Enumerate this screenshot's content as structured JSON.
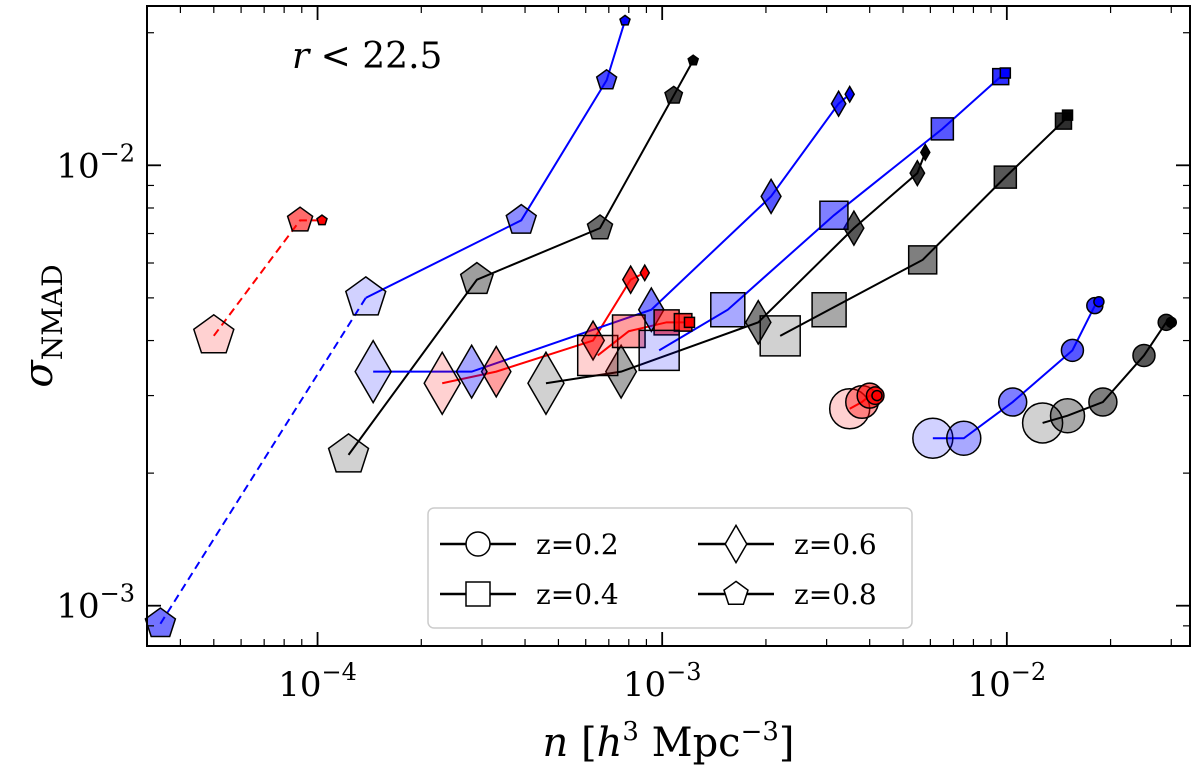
{
  "chart_data": {
    "type": "scatter",
    "title": "",
    "annotation": {
      "text_var": "r",
      "text_rest": " < 22.5",
      "position": "top-left"
    },
    "xlabel": {
      "var": "n",
      "unit_open": " [",
      "h": "h",
      "h_exp": "3",
      "mpc": " Mpc",
      "mpc_exp": "−3",
      "unit_close": "]"
    },
    "ylabel": {
      "base": "σ",
      "sub": "NMAD"
    },
    "xscale": "log",
    "yscale": "log",
    "xlim": [
      3.2e-05,
      0.034
    ],
    "ylim": [
      0.00081,
      0.023
    ],
    "xticks": [
      {
        "value": 0.0001,
        "base": "10",
        "exp": "−4"
      },
      {
        "value": 0.001,
        "base": "10",
        "exp": "−3"
      },
      {
        "value": 0.01,
        "base": "10",
        "exp": "−2"
      }
    ],
    "yticks": [
      {
        "value": 0.001,
        "base": "10",
        "exp": "−3"
      },
      {
        "value": 0.01,
        "base": "10",
        "exp": "−2"
      }
    ],
    "legend": {
      "placement": "bottom-center",
      "entries": [
        {
          "label": "z=0.2",
          "marker": "circle"
        },
        {
          "label": "z=0.4",
          "marker": "square"
        },
        {
          "label": "z=0.6",
          "marker": "diamond"
        },
        {
          "label": "z=0.8",
          "marker": "pentagon"
        }
      ]
    },
    "colors": {
      "red": "#ff0000",
      "blue": "#0000ff",
      "black": "#000000"
    },
    "series": [
      {
        "color": "red",
        "marker": "pentagon",
        "line": "dashed",
        "points": [
          [
            5e-05,
            0.0041
          ],
          [
            8.9e-05,
            0.0075
          ],
          [
            0.000103,
            0.0075
          ]
        ]
      },
      {
        "color": "blue",
        "marker": "pentagon",
        "line": "solid",
        "points": [
          [
            0.000138,
            0.005
          ],
          [
            0.00039,
            0.0075
          ],
          [
            0.00069,
            0.0156
          ],
          [
            0.00078,
            0.0213
          ]
        ]
      },
      {
        "color": "blue",
        "marker": "pentagon",
        "line": "dashed",
        "points": [
          [
            3.5e-05,
            0.00091
          ],
          [
            0.000138,
            0.005
          ]
        ]
      },
      {
        "color": "black",
        "marker": "pentagon",
        "line": "solid",
        "points": [
          [
            0.000123,
            0.0022
          ],
          [
            0.00029,
            0.0055
          ],
          [
            0.00066,
            0.0072
          ],
          [
            0.00108,
            0.0144
          ],
          [
            0.00123,
            0.0173
          ]
        ]
      },
      {
        "color": "red",
        "marker": "diamond",
        "line": "solid",
        "points": [
          [
            0.00023,
            0.0032
          ],
          [
            0.00033,
            0.0034
          ],
          [
            0.00063,
            0.004
          ],
          [
            0.00081,
            0.0055
          ],
          [
            0.00089,
            0.0057
          ]
        ]
      },
      {
        "color": "blue",
        "marker": "diamond",
        "line": "solid",
        "points": [
          [
            0.000145,
            0.0034
          ],
          [
            0.00028,
            0.0034
          ],
          [
            0.00093,
            0.0047
          ],
          [
            0.00207,
            0.0085
          ],
          [
            0.00325,
            0.0138
          ],
          [
            0.0035,
            0.0145
          ]
        ]
      },
      {
        "color": "black",
        "marker": "diamond",
        "line": "solid",
        "points": [
          [
            0.00046,
            0.0032
          ],
          [
            0.00076,
            0.0034
          ],
          [
            0.0019,
            0.0044
          ],
          [
            0.0036,
            0.0072
          ],
          [
            0.0055,
            0.0096
          ],
          [
            0.0058,
            0.0107
          ]
        ]
      },
      {
        "color": "red",
        "marker": "square",
        "line": "solid",
        "points": [
          [
            0.00065,
            0.0037
          ],
          [
            0.0008,
            0.0042
          ],
          [
            0.00103,
            0.0044
          ],
          [
            0.00115,
            0.0044
          ],
          [
            0.0012,
            0.0044
          ]
        ]
      },
      {
        "color": "blue",
        "marker": "square",
        "line": "solid",
        "points": [
          [
            0.00098,
            0.0038
          ],
          [
            0.00155,
            0.0047
          ],
          [
            0.00315,
            0.0077
          ],
          [
            0.0065,
            0.0121
          ],
          [
            0.0096,
            0.0159
          ],
          [
            0.0099,
            0.0162
          ]
        ]
      },
      {
        "color": "black",
        "marker": "square",
        "line": "solid",
        "points": [
          [
            0.0022,
            0.0041
          ],
          [
            0.00305,
            0.0047
          ],
          [
            0.0057,
            0.0061
          ],
          [
            0.0099,
            0.0094
          ],
          [
            0.0146,
            0.0126
          ],
          [
            0.015,
            0.013
          ]
        ]
      },
      {
        "color": "red",
        "marker": "circle",
        "line": "solid",
        "points": [
          [
            0.0035,
            0.0028
          ],
          [
            0.0038,
            0.0029
          ],
          [
            0.004,
            0.003
          ],
          [
            0.00415,
            0.003
          ],
          [
            0.0042,
            0.003
          ]
        ]
      },
      {
        "color": "blue",
        "marker": "circle",
        "line": "solid",
        "points": [
          [
            0.0061,
            0.0024
          ],
          [
            0.0075,
            0.0024
          ],
          [
            0.0104,
            0.0029
          ],
          [
            0.0155,
            0.0038
          ],
          [
            0.018,
            0.0048
          ],
          [
            0.0185,
            0.0049
          ]
        ]
      },
      {
        "color": "black",
        "marker": "circle",
        "line": "solid",
        "points": [
          [
            0.0127,
            0.0026
          ],
          [
            0.015,
            0.0027
          ],
          [
            0.019,
            0.0029
          ],
          [
            0.025,
            0.0037
          ],
          [
            0.029,
            0.0044
          ],
          [
            0.03,
            0.0044
          ]
        ]
      }
    ]
  }
}
